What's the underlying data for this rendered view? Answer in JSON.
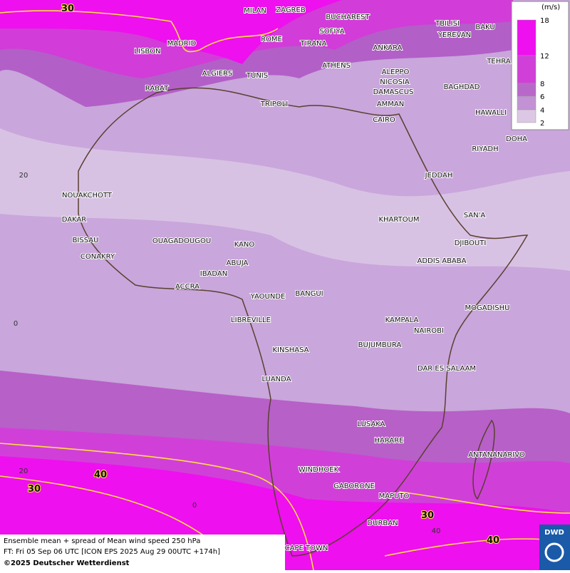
{
  "map": {
    "cities": [
      "MILAN",
      "ZAGREB",
      "BUCHAREST",
      "TBILISI",
      "BAKU",
      "YEREVAN",
      "TEHRA",
      "MADRID",
      "ROME",
      "SOFIYA",
      "ANKARA",
      "LISBON",
      "TIRANA",
      "ALGIERS",
      "TUNIS",
      "ATHENS",
      "ALEPPO",
      "RABAT",
      "NICOSIA",
      "BAGHDAD",
      "DAMASCUS",
      "AMMAN",
      "TRIPOLI",
      "CAIRO",
      "HAWALLI",
      "DOHA",
      "RIYADH",
      "JEDDAH",
      "NOUAKCHOTT",
      "DAKAR",
      "KHARTOUM",
      "SAN'A",
      "BISSAU",
      "OUAGADOUGOU",
      "KANO",
      "DJIBOUTI",
      "CONAKRY",
      "ABUJA",
      "ADDIS ABABA",
      "IBADAN",
      "ACCRA",
      "YAOUNDE",
      "BANGUI",
      "MOGADISHU",
      "LIBREVILLE",
      "KAMPALA",
      "NAIROBI",
      "KINSHASA",
      "BUJUMBURA",
      "DAR ES SALAAM",
      "LUANDA",
      "LUSAKA",
      "HARARE",
      "ANTANANARIVO",
      "WINDHOEK",
      "GABORONE",
      "MAPUTO",
      "DURBAN",
      "CAPE TOWN"
    ],
    "contour_labels": [
      "30",
      "40",
      "30",
      "30",
      "40"
    ],
    "lat_labels": [
      "20",
      "0",
      "20"
    ],
    "lon_labels": [
      "0",
      "40"
    ]
  },
  "legend": {
    "unit": "(m/s)",
    "levels": [
      18,
      12,
      8,
      6,
      4,
      2
    ],
    "colors": [
      "#ee10ee",
      "#d040d8",
      "#b868c8",
      "#c292d4",
      "#dcc8e4"
    ]
  },
  "footer": {
    "line1": "Ensemble mean + spread of Mean wind speed 250 hPa",
    "line2": "FT: Fri 05 Sep 06 UTC [ICON EPS 2025 Aug 29 00UTC +174h]",
    "line3": "©2025 Deutscher Wetterdienst"
  },
  "logo": "DWD"
}
